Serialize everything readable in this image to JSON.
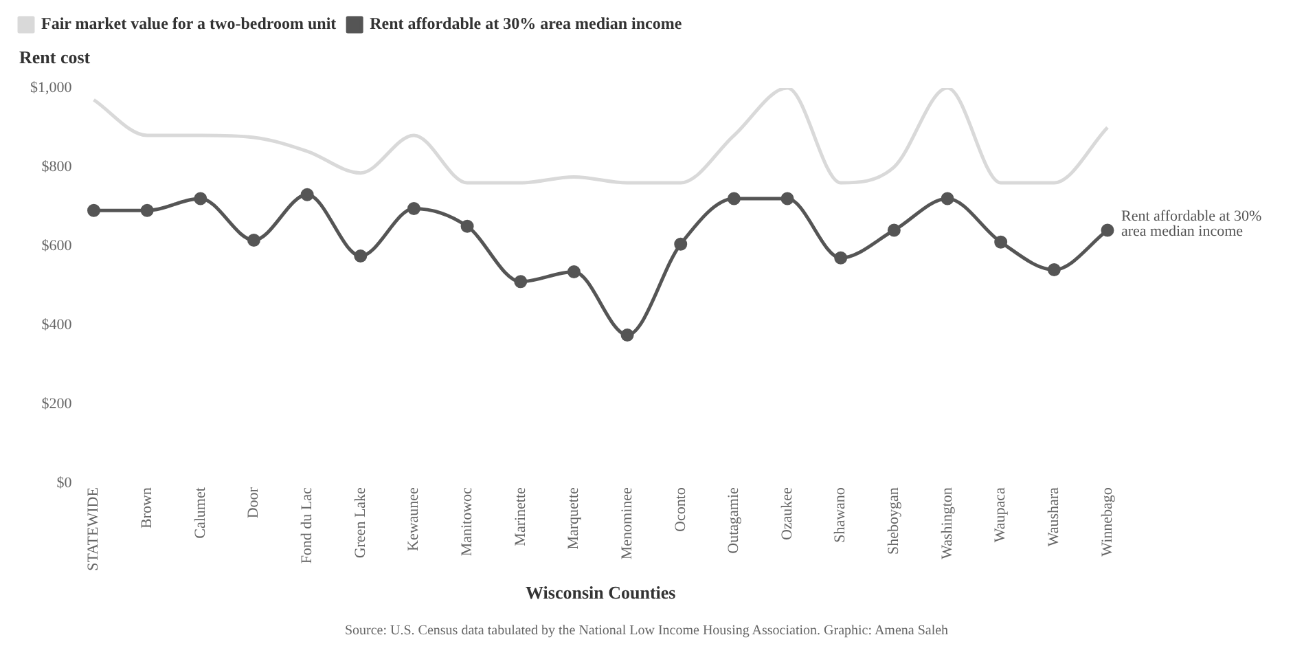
{
  "chart_data": {
    "type": "line",
    "ylabel": "Rent cost",
    "xlabel": "Wisconsin Counties",
    "categories": [
      "STATEWIDE",
      "Brown",
      "Calumet",
      "Door",
      "Fond du Lac",
      "Green Lake",
      "Kewaunee",
      "Manitowoc",
      "Marinette",
      "Marquette",
      "Menominee",
      "Oconto",
      "Outagamie",
      "Ozaukee",
      "Shawano",
      "Sheboygan",
      "Washington",
      "Waupaca",
      "Waushara",
      "Winnebago"
    ],
    "series": [
      {
        "name": "Fair market value for a two-bedroom unit",
        "color": "#d9d9d9",
        "marker": "none",
        "values": [
          970,
          880,
          880,
          875,
          840,
          785,
          880,
          760,
          760,
          775,
          760,
          760,
          880,
          1000,
          760,
          800,
          1000,
          760,
          760,
          900
        ]
      },
      {
        "name": "Rent affordable at 30% area median income",
        "color": "#555555",
        "values": [
          690,
          690,
          720,
          615,
          730,
          575,
          695,
          650,
          510,
          535,
          375,
          605,
          720,
          720,
          570,
          640,
          720,
          610,
          540,
          640
        ]
      }
    ],
    "ylim": [
      0,
      1000
    ],
    "yticks": [
      {
        "value": 0,
        "label": "$0"
      },
      {
        "value": 200,
        "label": "$200"
      },
      {
        "value": 400,
        "label": "$400"
      },
      {
        "value": 600,
        "label": "$600"
      },
      {
        "value": 800,
        "label": "$800"
      },
      {
        "value": 1000,
        "label": "$1,000"
      }
    ],
    "grid": false,
    "legend": "top left",
    "marker": "circle",
    "line_style": "solid",
    "annotations": [
      {
        "text": "Rent affordable at 30% area median income",
        "x": "Winnebago",
        "y": 640
      },
      "Source: U.S. Census data tabulated by the National Low Income Housing Association. Graphic: Amena Saleh"
    ]
  }
}
